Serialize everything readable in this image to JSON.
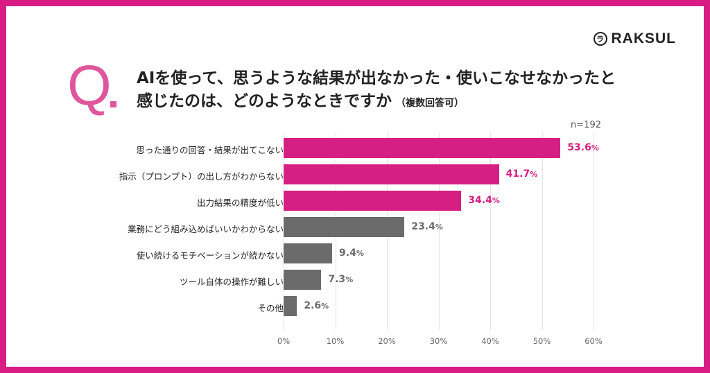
{
  "brand": {
    "name": "RAKSUL",
    "mark_glyph": "ラ"
  },
  "question": {
    "prefix": "Q",
    "line1": "AIを使って、思うような結果が出なかった・使いこなせなかったと",
    "line2": "感じたのは、どのようなときですか",
    "note": "（複数回答可）"
  },
  "sample_size": "n=192",
  "colors": {
    "frame": "#d91c84",
    "accent": "#e0569c",
    "highlight": "#d61f82",
    "other": "#6b6b6b"
  },
  "chart_data": {
    "type": "bar",
    "orientation": "horizontal",
    "categories": [
      "思った通りの回答・結果が出てこない",
      "指示（プロンプト）の出し方がわからない",
      "出力結果の精度が低い",
      "業務にどう組み込めばいいかわからない",
      "使い続けるモチベーションが続かない",
      "ツール自体の操作が難しい",
      "その他"
    ],
    "values": [
      53.6,
      41.7,
      34.4,
      23.4,
      9.4,
      7.3,
      2.6
    ],
    "value_labels": [
      "53.6",
      "41.7",
      "34.4",
      "23.4",
      "9.4",
      "7.3",
      "2.6"
    ],
    "value_suffix": "%",
    "highlighted": [
      true,
      true,
      true,
      false,
      false,
      false,
      false
    ],
    "xlim": [
      0,
      60
    ],
    "x_ticks": [
      "0%",
      "10%",
      "20%",
      "30%",
      "40%",
      "50%",
      "60%"
    ],
    "x_tick_values": [
      0,
      10,
      20,
      30,
      40,
      50,
      60
    ],
    "grid": true
  }
}
